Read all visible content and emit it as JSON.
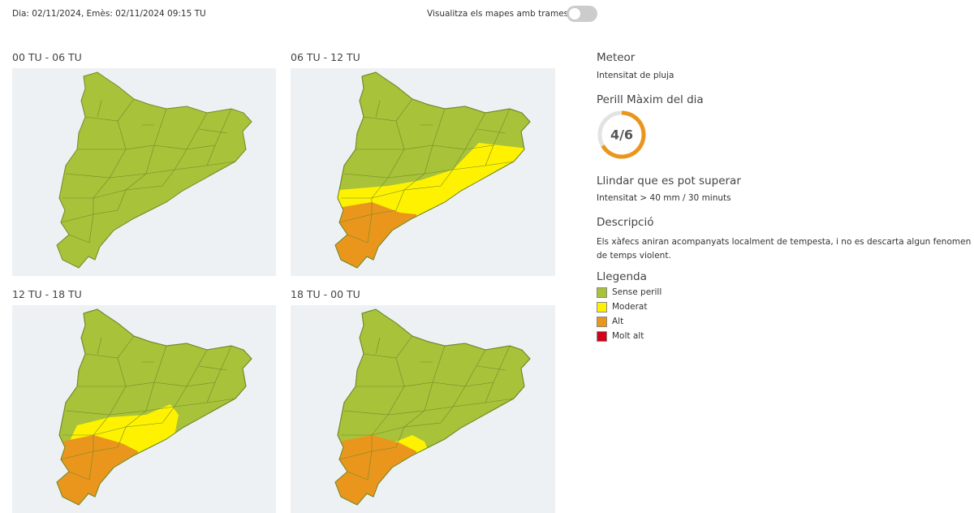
{
  "header": {
    "issue_text": "Dia: 02/11/2024, Emès: 02/11/2024 09:15 TU",
    "toggle_label": "Visualitza els mapes amb trames"
  },
  "maps": [
    {
      "title": "00 TU - 06 TU"
    },
    {
      "title": "06 TU - 12 TU"
    },
    {
      "title": "12 TU - 18 TU"
    },
    {
      "title": "18 TU - 00 TU"
    }
  ],
  "sidebar": {
    "meteor_heading": "Meteor",
    "meteor_value": "Intensitat de pluja",
    "danger_heading": "Perill Màxim del dia",
    "danger_gauge": {
      "label": "4/6",
      "value": 4,
      "max": 6
    },
    "threshold_heading": "Llindar que es pot superar",
    "threshold_value": "Intensitat > 40 mm / 30 minuts",
    "description_heading": "Descripció",
    "description_value": "Els xàfecs aniran acompanyats localment de tempesta, i no es descarta algun fenomen de temps violent.",
    "legend_heading": "Llegenda",
    "legend": [
      {
        "label": "Sense perill",
        "color": "#a8c23a"
      },
      {
        "label": "Moderat",
        "color": "#fff200"
      },
      {
        "label": "Alt",
        "color": "#ea961c"
      },
      {
        "label": "Molt alt",
        "color": "#d0021b"
      }
    ]
  }
}
